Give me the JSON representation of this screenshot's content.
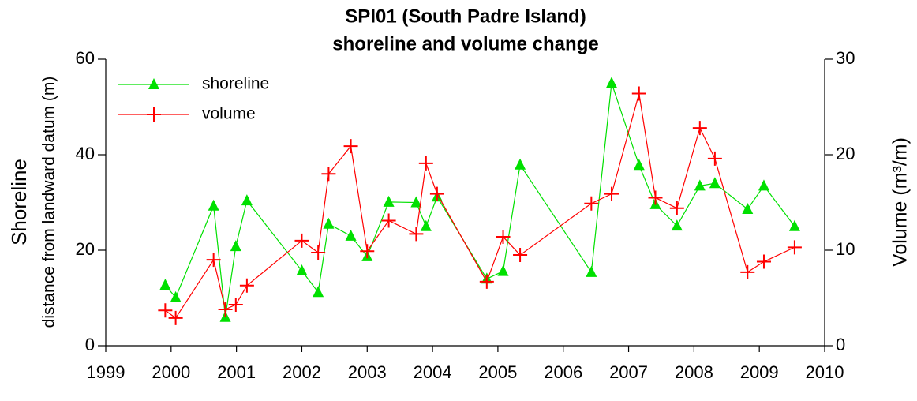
{
  "chart_data": {
    "type": "line",
    "title": "SPI01 (South Padre Island)",
    "subtitle": "shoreline and volume change",
    "y_label": "Shoreline",
    "y_sublabel": "distance from landward datum (m)",
    "y2_label": "Volume (m³/m)",
    "x": [
      1999.91,
      2000.07,
      2000.65,
      2000.83,
      2000.99,
      2001.16,
      2002.0,
      2002.25,
      2002.41,
      2002.75,
      2003.0,
      2003.33,
      2003.75,
      2003.9,
      2004.07,
      2004.83,
      2005.08,
      2005.34,
      2006.43,
      2006.74,
      2007.16,
      2007.41,
      2007.74,
      2008.09,
      2008.32,
      2008.82,
      2009.07,
      2009.54
    ],
    "series": [
      {
        "name": "shoreline",
        "color": "#00e000",
        "marker": "triangle",
        "values": [
          12.7,
          10.1,
          29.3,
          6.0,
          20.8,
          30.4,
          15.7,
          11.2,
          25.5,
          23.0,
          18.7,
          30.1,
          30.0,
          25.0,
          31.2,
          14.0,
          15.6,
          37.9,
          15.4,
          55.0,
          37.8,
          29.6,
          25.1,
          33.5,
          34.0,
          28.6,
          33.5,
          25.0
        ]
      },
      {
        "name": "volume",
        "color": "#ff0000",
        "marker": "plus",
        "axis": "y2",
        "values": [
          3.7,
          2.9,
          9.0,
          3.8,
          4.3,
          6.3,
          11.0,
          9.75,
          18.0,
          20.9,
          9.9,
          13.1,
          11.7,
          19.1,
          15.9,
          6.7,
          11.4,
          9.5,
          14.9,
          15.9,
          26.4,
          15.5,
          14.4,
          22.8,
          19.6,
          7.7,
          8.8,
          10.3
        ]
      }
    ],
    "xlim": [
      1999,
      2010
    ],
    "xticks": [
      1999,
      2000,
      2001,
      2002,
      2003,
      2004,
      2005,
      2006,
      2007,
      2008,
      2009,
      2010
    ],
    "ylim": [
      0,
      60
    ],
    "yticks": [
      0,
      20,
      40,
      60
    ],
    "y2lim": [
      0,
      30
    ],
    "y2ticks": [
      0,
      10,
      20,
      30
    ],
    "legend": "upper-left",
    "grid": false
  }
}
